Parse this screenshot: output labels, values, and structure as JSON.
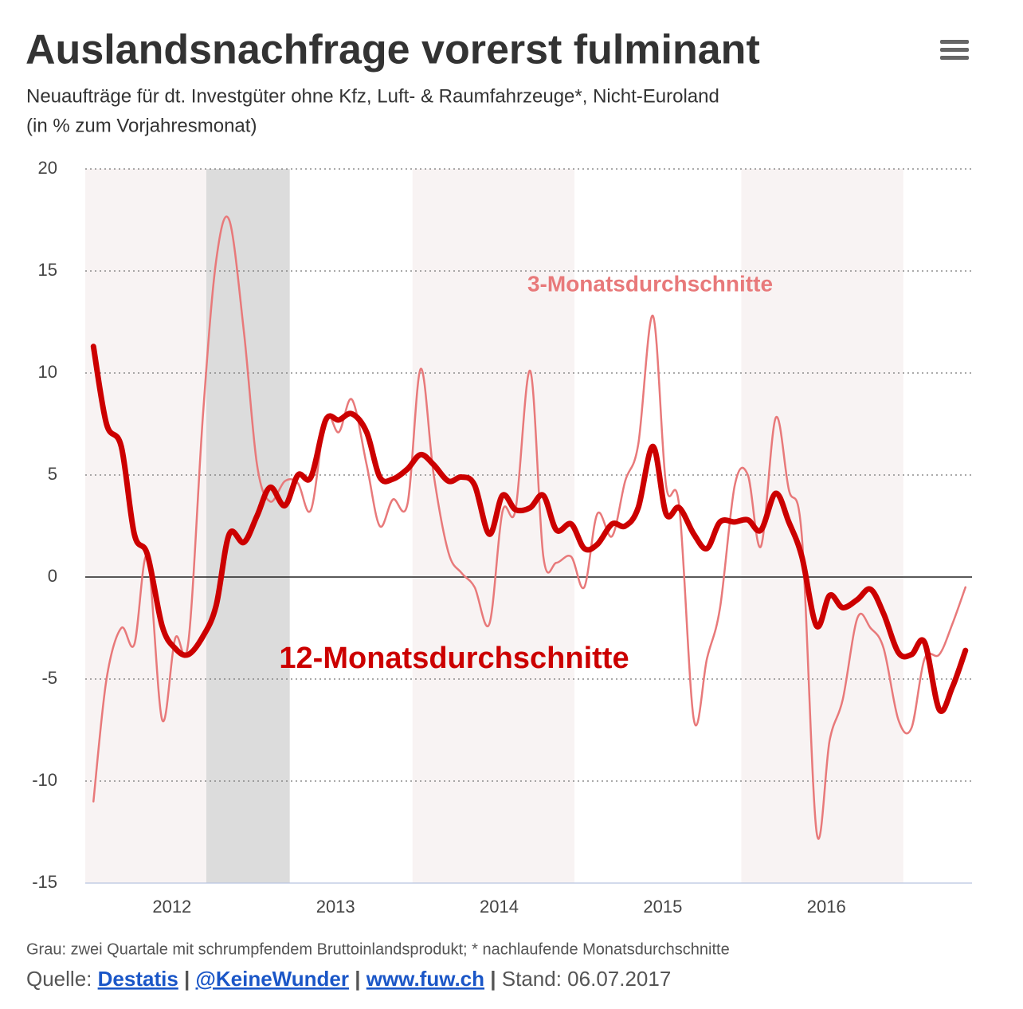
{
  "chart_data": {
    "type": "line",
    "title": "Auslandsnachfrage vorerst fulminant",
    "subtitle": [
      "Neuaufträge für dt. Investgüter ohne Kfz, Luft- & Raumfahrzeuge*, Nicht-Euroland",
      "(in % zum Vorjahresmonat)"
    ],
    "x": [
      2011.52,
      2011.6,
      2011.69,
      2011.77,
      2011.85,
      2011.94,
      2012.02,
      2012.1,
      2012.19,
      2012.27,
      2012.35,
      2012.44,
      2012.52,
      2012.6,
      2012.69,
      2012.77,
      2012.85,
      2012.94,
      2013.02,
      2013.1,
      2013.19,
      2013.27,
      2013.35,
      2013.44,
      2013.52,
      2013.6,
      2013.69,
      2013.77,
      2013.85,
      2013.94,
      2014.02,
      2014.1,
      2014.19,
      2014.27,
      2014.35,
      2014.44,
      2014.52,
      2014.6,
      2014.69,
      2014.77,
      2014.85,
      2014.94,
      2015.02,
      2015.1,
      2015.19,
      2015.27,
      2015.35,
      2015.44,
      2015.52,
      2015.6,
      2015.69,
      2015.77,
      2015.85,
      2015.94,
      2016.02,
      2016.1,
      2016.19,
      2016.27,
      2016.35,
      2016.44,
      2016.52,
      2016.6,
      2016.69,
      2016.77,
      2016.85
    ],
    "series": [
      {
        "name": "3-Monatsdurchschnitte",
        "color": "#e8797a",
        "width": 2.5,
        "values": [
          -11,
          -5,
          -2.5,
          -3.3,
          1,
          -7,
          -3,
          -3.2,
          8,
          15.5,
          17.5,
          12,
          5.5,
          3.7,
          4.7,
          4.6,
          3.3,
          7.8,
          7.1,
          8.7,
          5.5,
          2.5,
          3.8,
          3.6,
          10.2,
          5,
          1.2,
          0.2,
          -0.5,
          -2.3,
          3.2,
          3.3,
          10.1,
          1,
          0.7,
          1,
          -0.5,
          3.1,
          2,
          4.7,
          6.5,
          12.8,
          4.5,
          3.5,
          -7,
          -4,
          -1.5,
          4.5,
          5,
          1.5,
          7.8,
          4.3,
          2,
          -12.5,
          -8,
          -6,
          -2,
          -2.5,
          -3.5,
          -7,
          -7.4,
          -4,
          -3.8,
          -2.3,
          -0.5
        ]
      },
      {
        "name": "12-Monatsdurchschnitte",
        "color": "#cc0000",
        "width": 7,
        "values": [
          11.3,
          7.5,
          6.4,
          2.1,
          1.1,
          -2.4,
          -3.5,
          -3.8,
          -2.9,
          -1.4,
          2.1,
          1.7,
          3.0,
          4.4,
          3.5,
          5.0,
          4.9,
          7.7,
          7.7,
          8.0,
          7.1,
          4.9,
          4.8,
          5.3,
          6.0,
          5.5,
          4.7,
          4.9,
          4.5,
          2.1,
          4.0,
          3.3,
          3.4,
          4.0,
          2.3,
          2.6,
          1.4,
          1.6,
          2.6,
          2.5,
          3.4,
          6.4,
          3.1,
          3.4,
          2.1,
          1.4,
          2.7,
          2.7,
          2.8,
          2.3,
          4.1,
          2.7,
          1.0,
          -2.4,
          -0.9,
          -1.5,
          -1.1,
          -0.6,
          -1.8,
          -3.7,
          -3.8,
          -3.2,
          -6.5,
          -5.4,
          -3.6
        ]
      }
    ],
    "xlim": [
      2011.47,
      2016.89
    ],
    "xticks": [
      2012,
      2013,
      2014,
      2015,
      2016
    ],
    "ylim": [
      -15,
      20
    ],
    "yticks": [
      -15,
      -10,
      -5,
      0,
      5,
      10,
      15,
      20
    ],
    "grid": true,
    "plot_bands": [
      {
        "from": 2011.47,
        "to": 2012.21,
        "color": "#f8f3f3"
      },
      {
        "from": 2012.21,
        "to": 2012.72,
        "color": "#dcdcdc"
      },
      {
        "from": 2013.47,
        "to": 2014.46,
        "color": "#f8f3f3"
      },
      {
        "from": 2015.48,
        "to": 2016.47,
        "color": "#f8f3f3"
      }
    ],
    "footnote": "Grau: zwei Quartale mit schrumpfendem Bruttoinlandsprodukt; * nachlaufende Monatsdurchschnitte",
    "source": {
      "label": "Quelle:",
      "links": [
        "Destatis",
        "@KeineWunder",
        "www.fuw.ch"
      ],
      "separator": "|",
      "stand": "Stand: 06.07.2017"
    }
  }
}
